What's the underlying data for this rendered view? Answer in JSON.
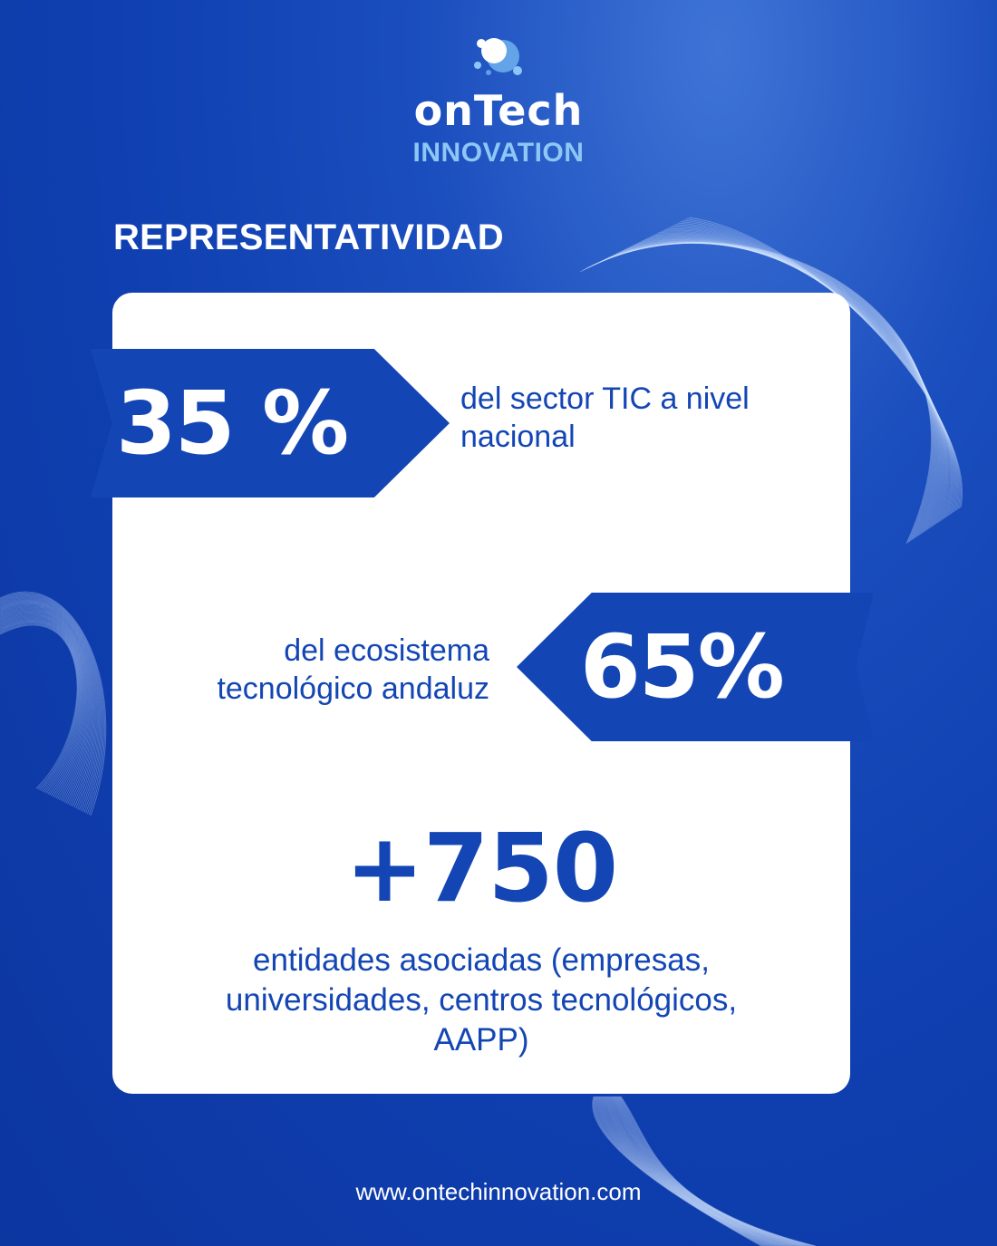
{
  "brand": {
    "name": "onTech",
    "subname": "INNOVATION"
  },
  "heading": "REPRESENTATIVIDAD",
  "stats": [
    {
      "value": "35 %",
      "description_lines": [
        "del sector TIC a nivel",
        "nacional"
      ]
    },
    {
      "value": "65%",
      "description_lines": [
        "del ecosistema",
        "tecnológico andaluz"
      ]
    },
    {
      "value": "+750",
      "description_lines": [
        "entidades asociadas (empresas,",
        "universidades, centros tecnológicos,",
        "AAPP)"
      ]
    }
  ],
  "footer": {
    "url": "www.ontechinnovation.com"
  },
  "colors": {
    "background": "#0f3fb0",
    "accent_blue": "#1346b4",
    "light_blue": "#8ec7f5",
    "card": "#ffffff"
  }
}
